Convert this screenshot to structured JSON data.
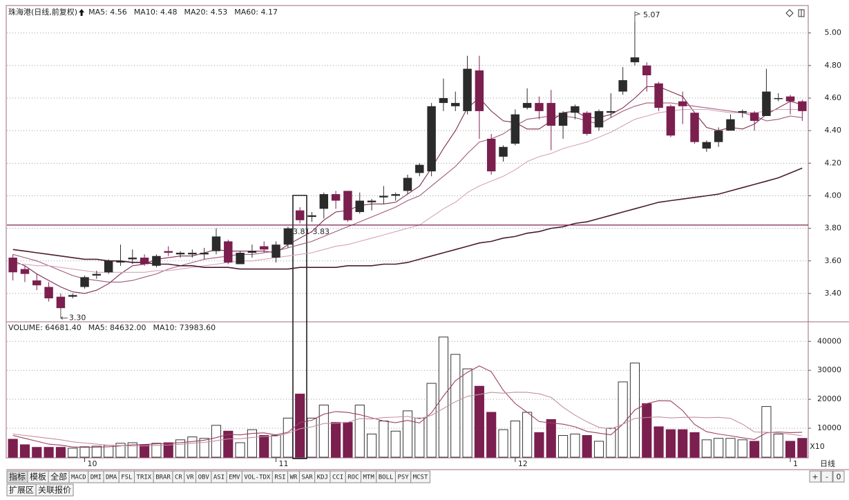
{
  "chart_data": [
    {
      "type": "candlestick",
      "title": "珠海港(日线,前复权)",
      "categories": [
        null,
        null,
        null,
        null,
        null,
        null,
        "10",
        null,
        null,
        null,
        null,
        null,
        null,
        null,
        null,
        null,
        null,
        null,
        null,
        null,
        null,
        null,
        "11",
        null,
        null,
        null,
        null,
        null,
        null,
        null,
        null,
        null,
        null,
        null,
        null,
        null,
        null,
        null,
        null,
        null,
        null,
        null,
        "12",
        null,
        null,
        null,
        null,
        null,
        null,
        null,
        null,
        null,
        null,
        null,
        null,
        null,
        null,
        null,
        null,
        null,
        null,
        null,
        null,
        null,
        null,
        "1",
        null
      ],
      "open": [
        3.62,
        3.55,
        3.48,
        3.44,
        3.38,
        3.38,
        3.44,
        3.51,
        3.53,
        3.59,
        3.61,
        3.62,
        3.57,
        3.66,
        3.64,
        3.64,
        3.64,
        3.66,
        3.72,
        3.58,
        3.65,
        3.69,
        3.62,
        3.7,
        3.91,
        3.87,
        3.92,
        4.01,
        4.03,
        3.9,
        3.96,
        3.99,
        4.0,
        4.03,
        4.14,
        4.15,
        4.57,
        4.55,
        4.52,
        4.77,
        4.35,
        4.24,
        4.32,
        4.54,
        4.57,
        4.57,
        4.43,
        4.51,
        4.51,
        4.42,
        4.51,
        4.64,
        4.82,
        4.8,
        4.69,
        4.55,
        4.58,
        4.51,
        4.29,
        4.33,
        4.4,
        4.51,
        4.51,
        4.49,
        4.6,
        4.61,
        4.58
      ],
      "high": [
        3.64,
        3.57,
        3.52,
        3.47,
        3.4,
        3.4,
        3.51,
        3.54,
        3.61,
        3.7,
        3.67,
        3.64,
        3.64,
        3.69,
        3.66,
        3.67,
        3.68,
        3.8,
        3.73,
        3.66,
        3.7,
        3.72,
        3.72,
        3.81,
        3.93,
        3.9,
        4.02,
        4.03,
        4.03,
        4.02,
        3.98,
        4.06,
        4.02,
        4.13,
        4.2,
        4.57,
        4.72,
        4.64,
        4.86,
        4.86,
        4.38,
        4.31,
        4.53,
        4.66,
        4.61,
        4.65,
        4.52,
        4.56,
        4.52,
        4.53,
        4.63,
        4.79,
        5.07,
        4.82,
        4.7,
        4.56,
        4.64,
        4.51,
        4.34,
        4.42,
        4.5,
        4.53,
        4.52,
        4.78,
        4.63,
        4.62,
        4.59
      ],
      "low": [
        3.48,
        3.47,
        3.42,
        3.35,
        3.3,
        3.37,
        3.43,
        3.49,
        3.52,
        3.57,
        3.58,
        3.57,
        3.56,
        3.63,
        3.62,
        3.62,
        3.61,
        3.64,
        3.58,
        3.58,
        3.62,
        3.65,
        3.59,
        3.68,
        3.83,
        3.84,
        3.86,
        3.92,
        3.84,
        3.89,
        3.91,
        3.95,
        3.97,
        4.01,
        4.12,
        4.12,
        4.52,
        4.52,
        4.5,
        4.35,
        4.13,
        4.21,
        4.31,
        4.53,
        4.47,
        4.28,
        4.35,
        4.47,
        4.37,
        4.4,
        4.48,
        4.62,
        4.8,
        4.64,
        4.52,
        4.36,
        4.44,
        4.32,
        4.27,
        4.3,
        4.4,
        4.48,
        4.4,
        4.49,
        4.58,
        4.5,
        4.46
      ],
      "close": [
        3.53,
        3.52,
        3.45,
        3.37,
        3.31,
        3.39,
        3.5,
        3.52,
        3.6,
        3.6,
        3.62,
        3.58,
        3.63,
        3.65,
        3.65,
        3.65,
        3.65,
        3.75,
        3.59,
        3.65,
        3.66,
        3.67,
        3.7,
        3.8,
        3.85,
        3.88,
        4.01,
        3.97,
        3.85,
        3.97,
        3.97,
        4.0,
        4.01,
        4.11,
        4.19,
        4.55,
        4.6,
        4.57,
        4.78,
        4.52,
        4.15,
        4.3,
        4.5,
        4.57,
        4.52,
        4.43,
        4.51,
        4.55,
        4.38,
        4.52,
        4.52,
        4.71,
        4.85,
        4.74,
        4.54,
        4.37,
        4.55,
        4.33,
        4.33,
        4.4,
        4.47,
        4.52,
        4.46,
        4.64,
        4.6,
        4.58,
        4.52
      ],
      "up_color": "#2b2b2b",
      "down_color": "#7b1f4f",
      "series": [
        {
          "label": "MA5: 4.56",
          "color": "#7a2a50",
          "values": [
            3.6,
            3.57,
            3.52,
            3.48,
            3.44,
            3.41,
            3.4,
            3.42,
            3.46,
            3.52,
            3.57,
            3.58,
            3.61,
            3.62,
            3.63,
            3.63,
            3.65,
            3.67,
            3.66,
            3.66,
            3.66,
            3.66,
            3.65,
            3.7,
            3.74,
            3.78,
            3.85,
            3.9,
            3.91,
            3.94,
            3.95,
            3.95,
            3.96,
            4.01,
            4.06,
            4.17,
            4.29,
            4.4,
            4.54,
            4.6,
            4.52,
            4.46,
            4.45,
            4.41,
            4.41,
            4.46,
            4.51,
            4.52,
            4.48,
            4.48,
            4.5,
            4.54,
            4.6,
            4.67,
            4.67,
            4.64,
            4.61,
            4.51,
            4.42,
            4.4,
            4.42,
            4.41,
            4.44,
            4.5,
            4.54,
            4.58,
            4.56
          ]
        },
        {
          "label": "MA10: 4.48",
          "color": "#a0587a",
          "values": [
            3.64,
            3.62,
            3.6,
            3.57,
            3.54,
            3.51,
            3.49,
            3.48,
            3.47,
            3.47,
            3.48,
            3.5,
            3.52,
            3.55,
            3.57,
            3.59,
            3.61,
            3.62,
            3.63,
            3.64,
            3.64,
            3.65,
            3.66,
            3.68,
            3.7,
            3.72,
            3.75,
            3.78,
            3.81,
            3.84,
            3.87,
            3.9,
            3.93,
            3.97,
            4.0,
            4.06,
            4.12,
            4.18,
            4.26,
            4.33,
            4.35,
            4.38,
            4.43,
            4.47,
            4.48,
            4.49,
            4.49,
            4.48,
            4.46,
            4.44,
            4.48,
            4.52,
            4.55,
            4.57,
            4.57,
            4.57,
            4.56,
            4.55,
            4.54,
            4.53,
            4.52,
            4.51,
            4.49,
            4.46,
            4.47,
            4.49,
            4.48
          ]
        },
        {
          "label": "MA20: 4.53",
          "color": "#d4a3b8",
          "values": [
            3.58,
            3.58,
            3.57,
            3.57,
            3.56,
            3.55,
            3.54,
            3.53,
            3.53,
            3.53,
            3.53,
            3.53,
            3.54,
            3.54,
            3.55,
            3.56,
            3.57,
            3.58,
            3.59,
            3.6,
            3.6,
            3.61,
            3.62,
            3.63,
            3.64,
            3.65,
            3.67,
            3.69,
            3.7,
            3.72,
            3.74,
            3.76,
            3.78,
            3.8,
            3.82,
            3.87,
            3.92,
            3.96,
            4.02,
            4.06,
            4.09,
            4.12,
            4.16,
            4.21,
            4.24,
            4.26,
            4.29,
            4.31,
            4.33,
            4.36,
            4.39,
            4.43,
            4.47,
            4.49,
            4.51,
            4.52,
            4.53,
            4.53,
            4.53,
            4.52,
            4.51,
            4.51,
            4.51,
            4.52,
            4.53,
            4.53,
            4.53
          ]
        },
        {
          "label": "MA60: 4.17",
          "color": "#4a1a30",
          "values": [
            3.67,
            3.66,
            3.65,
            3.64,
            3.63,
            3.62,
            3.61,
            3.61,
            3.6,
            3.6,
            3.59,
            3.59,
            3.58,
            3.58,
            3.57,
            3.57,
            3.56,
            3.56,
            3.56,
            3.55,
            3.55,
            3.55,
            3.55,
            3.55,
            3.56,
            3.56,
            3.56,
            3.56,
            3.57,
            3.57,
            3.57,
            3.58,
            3.58,
            3.59,
            3.61,
            3.63,
            3.65,
            3.67,
            3.69,
            3.71,
            3.72,
            3.74,
            3.75,
            3.77,
            3.78,
            3.8,
            3.81,
            3.83,
            3.84,
            3.86,
            3.88,
            3.9,
            3.92,
            3.94,
            3.96,
            3.97,
            3.98,
            3.99,
            4.0,
            4.01,
            4.03,
            4.05,
            4.07,
            4.09,
            4.11,
            4.14,
            4.17
          ]
        }
      ],
      "ylim": [
        3.23,
        5.16
      ],
      "yticks": [
        {
          "value": 3.4,
          "label": "3.40"
        },
        {
          "value": 3.6,
          "label": "3.60"
        },
        {
          "value": 3.8,
          "label": "3.80"
        },
        {
          "value": 4,
          "label": "4.00"
        },
        {
          "value": 4.2,
          "label": "4.20"
        },
        {
          "value": 4.4,
          "label": "4.40"
        },
        {
          "value": 4.6,
          "label": "4.60"
        },
        {
          "value": 4.8,
          "label": "4.80"
        },
        {
          "value": 5,
          "label": "5.00"
        }
      ],
      "grid": true,
      "hline": 3.82,
      "hline_label": "3.81-3.83",
      "high_label": {
        "value": 5.07,
        "label": "5.07"
      },
      "low_label": {
        "value": 3.3,
        "label": "3.30"
      }
    },
    {
      "type": "bar",
      "title": "VOLUME: 64681.40",
      "unit": "X10",
      "values": [
        6200,
        4300,
        3400,
        3400,
        3400,
        3100,
        3600,
        3800,
        4100,
        4800,
        5000,
        4300,
        4800,
        5000,
        6000,
        7000,
        6500,
        11000,
        9000,
        5000,
        9500,
        7500,
        7500,
        13500,
        21800,
        13500,
        18000,
        12000,
        12000,
        18000,
        8000,
        12500,
        9000,
        16000,
        13500,
        25500,
        41500,
        35500,
        30500,
        24500,
        15500,
        9500,
        12500,
        15500,
        8500,
        13000,
        7500,
        8000,
        7500,
        5500,
        10000,
        26000,
        32500,
        18500,
        10500,
        9500,
        9500,
        8500,
        6000,
        6500,
        6500,
        6000,
        5500,
        17500,
        8000,
        5500,
        6500
      ],
      "up_color": "#ffffff",
      "down_color": "#7b1f4f",
      "series": [
        {
          "label": "MA5: 84632.00",
          "color": "#9a4060",
          "values": [
            7500,
            6500,
            5500,
            4500,
            4140,
            3520,
            3380,
            3460,
            3600,
            3880,
            4260,
            4400,
            4600,
            4780,
            5020,
            5420,
            5860,
            6760,
            7900,
            7700,
            8200,
            8400,
            7700,
            8600,
            11960,
            12760,
            14860,
            15760,
            15460,
            14700,
            13600,
            12500,
            11900,
            12700,
            11800,
            15300,
            21100,
            26400,
            29300,
            31500,
            29500,
            23100,
            18500,
            15500,
            12300,
            11800,
            11400,
            10500,
            8900,
            8300,
            7700,
            11400,
            16300,
            18500,
            19500,
            19400,
            16100,
            11300,
            8800,
            8000,
            7400,
            6700,
            6100,
            8400,
            8700,
            8500,
            8600
          ]
        },
        {
          "label": "MA10: 73983.60",
          "color": "#c48fa2",
          "values": [
            8000,
            7500,
            7000,
            6500,
            6000,
            5300,
            4900,
            4500,
            4100,
            4010,
            3890,
            3890,
            4030,
            4190,
            4450,
            4840,
            5130,
            5680,
            6340,
            6360,
            6810,
            7130,
            7230,
            8250,
            9830,
            10480,
            11630,
            11730,
            12030,
            13330,
            13180,
            13680,
            13830,
            14080,
            13250,
            14450,
            16800,
            19150,
            21000,
            21650,
            22400,
            22100,
            22450,
            22400,
            21900,
            20650,
            17250,
            14500,
            12200,
            10300,
            9750,
            11400,
            13400,
            13700,
            13900,
            13550,
            13750,
            13800,
            13650,
            13750,
            13400,
            11400,
            8700,
            8600,
            8350,
            7950,
            7400
          ]
        }
      ],
      "ylim": [
        0,
        46500
      ],
      "yticks": [
        10000,
        20000,
        30000,
        40000
      ],
      "grid": true
    }
  ],
  "toolbar": {
    "tabs": [
      "指标",
      "模板",
      "全部",
      "MACD",
      "DMI",
      "DMA",
      "FSL",
      "TRIX",
      "BRAR",
      "CR",
      "VR",
      "OBV",
      "ASI",
      "EMV",
      "VOL-TDX",
      "RSI",
      "WR",
      "SAR",
      "KDJ",
      "CCI",
      "ROC",
      "MTM",
      "BOLL",
      "PSY",
      "MCST"
    ],
    "bottom_tabs": [
      "扩展区",
      "关联报价"
    ],
    "period": "日线",
    "buttons": [
      "+",
      "-",
      "0"
    ]
  }
}
